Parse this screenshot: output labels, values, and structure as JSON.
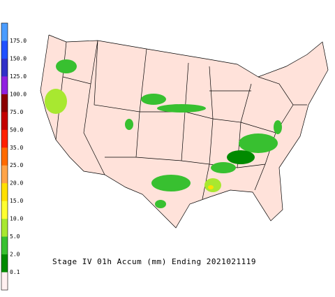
{
  "title": "Stage IV 01h Accum (mm) Ending 2021021119",
  "legend": {
    "colors": [
      "#4a9cff",
      "#2050ff",
      "#3030c8",
      "#9020e0",
      "#8b0000",
      "#c40000",
      "#ff2000",
      "#ff6a00",
      "#ffa448",
      "#ffe000",
      "#ffff30",
      "#a8e830",
      "#38c030",
      "#008a00",
      "#fff0f0"
    ],
    "labels": [
      "175.0",
      "150.0",
      "125.0",
      "100.0",
      "75.0",
      "50.0",
      "35.0",
      "25.0",
      "20.0",
      "15.0",
      "10.0",
      "5.0",
      "2.0",
      "0.1"
    ]
  }
}
